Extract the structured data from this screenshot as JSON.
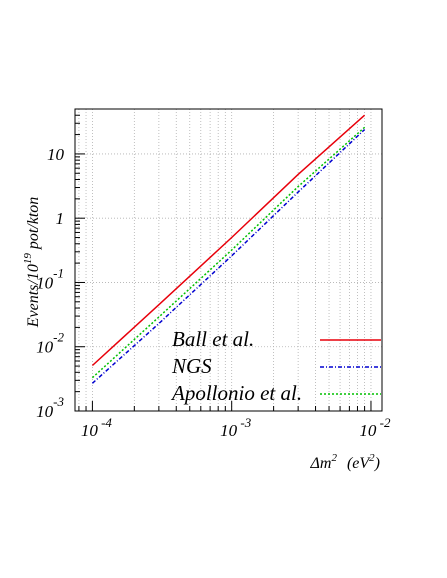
{
  "chart_data": {
    "type": "line",
    "xscale": "log",
    "yscale": "log",
    "xlim": [
      7.5e-05,
      0.012
    ],
    "ylim": [
      0.001,
      50
    ],
    "grid": true,
    "legend_placement": "bottom-right",
    "xlabel": {
      "base": "Δm",
      "sup": "2",
      "unit_base": "(eV",
      "unit_sup": "2",
      "unit_end": ")"
    },
    "ylabel": {
      "prefix": "Events/10",
      "sup": "19",
      "suffix": " pot/kton"
    },
    "xticks": [
      {
        "value": 0.0001,
        "base": "10",
        "exp": "-4"
      },
      {
        "value": 0.001,
        "base": "10",
        "exp": "-3"
      },
      {
        "value": 0.01,
        "base": "10",
        "exp": "-2"
      }
    ],
    "yticks": [
      {
        "value": 0.001,
        "base": "10",
        "exp": "-3"
      },
      {
        "value": 0.01,
        "base": "10",
        "exp": "-2"
      },
      {
        "value": 0.1,
        "base": "10",
        "exp": "-1"
      },
      {
        "value": 1,
        "base": "1",
        "exp": ""
      },
      {
        "value": 10,
        "base": "10",
        "exp": ""
      }
    ],
    "series": [
      {
        "name": "Ball et al.",
        "color": "#e8000b",
        "style": "solid",
        "x": [
          0.0001,
          0.0003,
          0.001,
          0.003,
          0.009
        ],
        "y": [
          0.0051,
          0.045,
          0.5,
          4.8,
          40
        ]
      },
      {
        "name": "NGS",
        "color": "#0000d0",
        "style": "dashdot",
        "x": [
          0.0001,
          0.0003,
          0.001,
          0.003,
          0.009
        ],
        "y": [
          0.0027,
          0.023,
          0.26,
          2.55,
          24
        ]
      },
      {
        "name": "Apollonio et al.",
        "color": "#00c000",
        "style": "dotted",
        "x": [
          0.0001,
          0.0003,
          0.001,
          0.003,
          0.009
        ],
        "y": [
          0.0033,
          0.029,
          0.32,
          3.1,
          26
        ]
      }
    ]
  }
}
